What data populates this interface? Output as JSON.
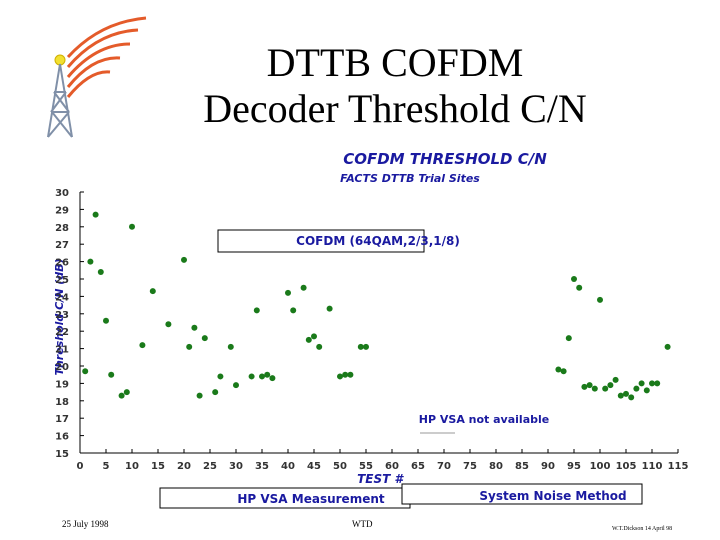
{
  "slide": {
    "title_line1": "DTTB COFDM",
    "title_line2": "Decoder Threshold C/N",
    "footer_date": "25 July 1998",
    "footer_center": "WTD",
    "footer_author": "W.T.Dickson 14 April 98"
  },
  "colors": {
    "title": "#000000",
    "chart_title": "#1a1aa0",
    "marker": "#1a7a1a",
    "axis": "#000000",
    "grid": "#000000"
  },
  "chart_data": {
    "type": "scatter",
    "title": "COFDM THRESHOLD C/N",
    "subtitle": "FACTS DTTB Trial Sites",
    "xlabel": "TEST #",
    "ylabel": "Threshold C/N (dB)",
    "xlim": [
      0,
      115
    ],
    "ylim": [
      15,
      30
    ],
    "x_ticks": [
      0,
      5,
      10,
      15,
      20,
      25,
      30,
      35,
      40,
      45,
      50,
      55,
      60,
      65,
      70,
      75,
      80,
      85,
      90,
      95,
      100,
      105,
      110,
      115
    ],
    "x_tick_labels": [
      "0",
      "5",
      "10",
      "15",
      "20",
      "25",
      "30",
      "35",
      "40",
      "45",
      "50",
      "55",
      "60",
      "65",
      "70",
      "75",
      "80",
      "85",
      "90",
      "95",
      "100",
      "105",
      "110",
      "115"
    ],
    "y_ticks": [
      15,
      16,
      17,
      18,
      19,
      20,
      21,
      22,
      23,
      24,
      25,
      26,
      27,
      28,
      29,
      30
    ],
    "y_tick_labels": [
      "15",
      "16",
      "17",
      "18",
      "19",
      "20",
      "21",
      "22",
      "23",
      "24",
      "25",
      "26",
      "27",
      "28",
      "29",
      "30"
    ],
    "grid": false,
    "annotations": {
      "config_box": "COFDM (64QAM,2/3,1/8)",
      "unavailable_note": "HP VSA not available"
    },
    "legend": [
      {
        "label": "HP VSA Measurement",
        "position": "bottom-left"
      },
      {
        "label": "System Noise Method",
        "position": "bottom-right"
      }
    ],
    "series": [
      {
        "points": [
          [
            1,
            19.7
          ],
          [
            2,
            26.0
          ],
          [
            3,
            28.7
          ],
          [
            4,
            25.4
          ],
          [
            5,
            22.6
          ],
          [
            6,
            19.5
          ],
          [
            8,
            18.3
          ],
          [
            9,
            18.5
          ],
          [
            10,
            28.0
          ],
          [
            12,
            21.2
          ],
          [
            14,
            24.3
          ],
          [
            17,
            22.4
          ],
          [
            20,
            26.1
          ],
          [
            21,
            21.1
          ],
          [
            22,
            22.2
          ],
          [
            23,
            18.3
          ],
          [
            24,
            21.6
          ],
          [
            26,
            18.5
          ],
          [
            27,
            19.4
          ],
          [
            29,
            21.1
          ],
          [
            30,
            18.9
          ],
          [
            33,
            19.4
          ],
          [
            34,
            23.2
          ],
          [
            35,
            19.4
          ],
          [
            36,
            19.5
          ],
          [
            37,
            19.3
          ],
          [
            40,
            24.2
          ],
          [
            41,
            23.2
          ],
          [
            43,
            24.5
          ],
          [
            44,
            21.5
          ],
          [
            45,
            21.7
          ],
          [
            46,
            21.1
          ],
          [
            48,
            23.3
          ],
          [
            50,
            19.4
          ],
          [
            51,
            19.5
          ],
          [
            52,
            19.5
          ],
          [
            54,
            21.1
          ],
          [
            55,
            21.1
          ],
          [
            92,
            19.8
          ],
          [
            93,
            19.7
          ],
          [
            94,
            21.6
          ],
          [
            95,
            25.0
          ],
          [
            96,
            24.5
          ],
          [
            97,
            18.8
          ],
          [
            98,
            18.9
          ],
          [
            99,
            18.7
          ],
          [
            100,
            23.8
          ],
          [
            101,
            18.7
          ],
          [
            102,
            18.9
          ],
          [
            103,
            19.2
          ],
          [
            104,
            18.3
          ],
          [
            105,
            18.4
          ],
          [
            106,
            18.2
          ],
          [
            107,
            18.7
          ],
          [
            108,
            19.0
          ],
          [
            109,
            18.6
          ],
          [
            110,
            19.0
          ],
          [
            111,
            19.0
          ],
          [
            113,
            21.1
          ]
        ]
      }
    ]
  }
}
